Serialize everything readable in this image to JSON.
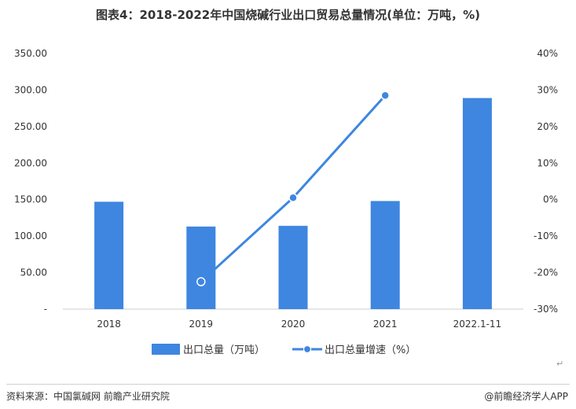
{
  "title": "图表4：2018-2022年中国烧碱行业出口贸易总量情况(单位：万吨，%)",
  "chart_data": {
    "type": "bar",
    "categories": [
      "2018",
      "2019",
      "2020",
      "2021",
      "2022.1-11"
    ],
    "series": [
      {
        "name": "出口总量（万吨）",
        "type": "bar",
        "axis": "left",
        "values": [
          147,
          113,
          114,
          148,
          289
        ],
        "color": "#3e86e0"
      },
      {
        "name": "出口总量增速（%）",
        "type": "line",
        "axis": "right",
        "values": [
          null,
          -22.5,
          0.5,
          28.5,
          null
        ],
        "color": "#3e86e0"
      }
    ],
    "y_left": {
      "ylim": [
        0,
        350
      ],
      "ticks": [
        "-",
        "50.00",
        "100.00",
        "150.00",
        "200.00",
        "250.00",
        "300.00",
        "350.00"
      ]
    },
    "y_right": {
      "ylim": [
        -30,
        40
      ],
      "ticks": [
        "-30%",
        "-20%",
        "-10%",
        "0%",
        "10%",
        "20%",
        "30%",
        "40%"
      ]
    },
    "grid": false,
    "legend": "bottom"
  },
  "footer": {
    "source": "资料来源：中国氯碱网 前瞻产业研究院",
    "brand": "@前瞻经济学人APP"
  }
}
